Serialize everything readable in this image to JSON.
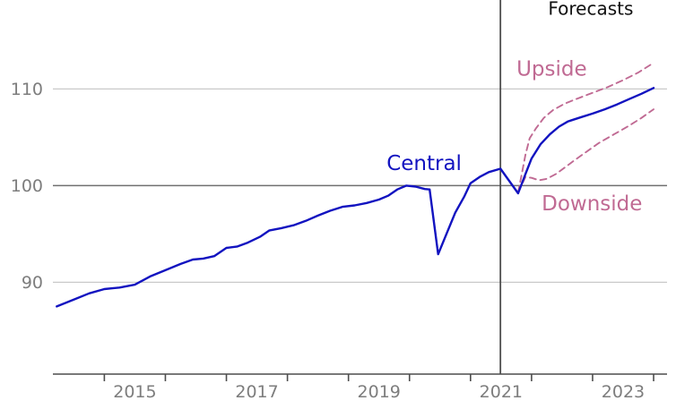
{
  "chart_data": {
    "type": "line",
    "title": "",
    "xlabel": "",
    "ylabel": "",
    "grid": true,
    "legend_position": "none",
    "xlim": [
      2014.157,
      2024.22
    ],
    "ylim": [
      80.5,
      119.2
    ],
    "x_ticks": {
      "tick_years": [
        2015,
        2016,
        2017,
        2018,
        2019,
        2020,
        2021,
        2022,
        2023,
        2024
      ],
      "label_years": [
        2015.5,
        2017.5,
        2019.5,
        2021.5,
        2023.5
      ],
      "labels": [
        "2015",
        "2017",
        "2019",
        "2021",
        "2023"
      ]
    },
    "y_ticks": {
      "values": [
        90,
        100,
        110
      ],
      "labels": [
        "90",
        "100",
        "110"
      ]
    },
    "gridline_values": [
      90,
      100,
      110
    ],
    "emphasized_gridline_value": 100,
    "forecast_divider_year": 2021.49,
    "series": [
      {
        "name": "Downside",
        "style": "dashed",
        "color_key": "scenario",
        "points": [
          [
            2021.78,
            99.3
          ],
          [
            2021.9,
            100.9
          ],
          [
            2022.0,
            100.8
          ],
          [
            2022.12,
            100.55
          ],
          [
            2022.25,
            100.7
          ],
          [
            2022.4,
            101.2
          ],
          [
            2022.55,
            101.9
          ],
          [
            2022.7,
            102.6
          ],
          [
            2022.9,
            103.5
          ],
          [
            2023.1,
            104.4
          ],
          [
            2023.35,
            105.3
          ],
          [
            2023.6,
            106.2
          ],
          [
            2023.8,
            107.0
          ],
          [
            2024.0,
            107.9
          ]
        ]
      },
      {
        "name": "Upside",
        "style": "dashed",
        "color_key": "scenario",
        "points": [
          [
            2021.78,
            99.3
          ],
          [
            2021.84,
            101.2
          ],
          [
            2021.9,
            103.2
          ],
          [
            2021.97,
            104.9
          ],
          [
            2022.07,
            105.9
          ],
          [
            2022.2,
            107.0
          ],
          [
            2022.35,
            107.8
          ],
          [
            2022.55,
            108.5
          ],
          [
            2022.75,
            109.0
          ],
          [
            2023.0,
            109.6
          ],
          [
            2023.25,
            110.2
          ],
          [
            2023.5,
            110.9
          ],
          [
            2023.75,
            111.7
          ],
          [
            2024.0,
            112.7
          ]
        ]
      },
      {
        "name": "Central",
        "style": "solid",
        "color_key": "central",
        "points": [
          [
            2014.22,
            87.5
          ],
          [
            2014.5,
            88.2
          ],
          [
            2014.75,
            88.85
          ],
          [
            2015.0,
            89.3
          ],
          [
            2015.25,
            89.45
          ],
          [
            2015.5,
            89.75
          ],
          [
            2015.75,
            90.6
          ],
          [
            2016.0,
            91.25
          ],
          [
            2016.25,
            91.9
          ],
          [
            2016.45,
            92.35
          ],
          [
            2016.62,
            92.45
          ],
          [
            2016.8,
            92.7
          ],
          [
            2017.0,
            93.55
          ],
          [
            2017.18,
            93.7
          ],
          [
            2017.35,
            94.1
          ],
          [
            2017.55,
            94.7
          ],
          [
            2017.7,
            95.35
          ],
          [
            2017.9,
            95.6
          ],
          [
            2018.1,
            95.9
          ],
          [
            2018.3,
            96.35
          ],
          [
            2018.5,
            96.9
          ],
          [
            2018.7,
            97.4
          ],
          [
            2018.9,
            97.8
          ],
          [
            2019.1,
            97.95
          ],
          [
            2019.3,
            98.2
          ],
          [
            2019.5,
            98.55
          ],
          [
            2019.65,
            98.95
          ],
          [
            2019.8,
            99.6
          ],
          [
            2019.95,
            100.0
          ],
          [
            2020.1,
            99.9
          ],
          [
            2020.25,
            99.65
          ],
          [
            2020.33,
            99.6
          ],
          [
            2020.47,
            92.9
          ],
          [
            2020.62,
            95.2
          ],
          [
            2020.75,
            97.2
          ],
          [
            2020.9,
            98.9
          ],
          [
            2021.0,
            100.25
          ],
          [
            2021.15,
            100.9
          ],
          [
            2021.3,
            101.4
          ],
          [
            2021.49,
            101.75
          ],
          [
            2021.78,
            99.2
          ],
          [
            2021.9,
            101.2
          ],
          [
            2022.0,
            102.8
          ],
          [
            2022.15,
            104.3
          ],
          [
            2022.3,
            105.3
          ],
          [
            2022.45,
            106.1
          ],
          [
            2022.6,
            106.65
          ],
          [
            2022.8,
            107.05
          ],
          [
            2023.0,
            107.45
          ],
          [
            2023.2,
            107.9
          ],
          [
            2023.4,
            108.4
          ],
          [
            2023.6,
            108.95
          ],
          [
            2023.8,
            109.5
          ],
          [
            2024.0,
            110.1
          ]
        ]
      }
    ],
    "annotations": [
      {
        "name": "forecasts-label",
        "text": "Forecasts",
        "at": [
          2022.97,
          118.3
        ],
        "color_key": "text_dark",
        "size": 20
      },
      {
        "name": "upside-label",
        "text": "Upside",
        "at": [
          2022.33,
          112.1
        ],
        "color_key": "scenario",
        "size": 23
      },
      {
        "name": "central-label",
        "text": "Central",
        "at": [
          2020.24,
          102.35
        ],
        "color_key": "central",
        "size": 23
      },
      {
        "name": "downside-label",
        "text": "Downside",
        "at": [
          2022.99,
          98.2
        ],
        "color_key": "scenario",
        "size": 23
      }
    ]
  },
  "colors": {
    "central": "#1213c0",
    "scenario": "#c06a93",
    "grid_light": "#c9c9c9",
    "grid_dark": "#6f6f6f",
    "axis": "#4d4d4d",
    "tick_label": "#7d7d7d",
    "text_dark": "#111111",
    "background": "#ffffff"
  }
}
